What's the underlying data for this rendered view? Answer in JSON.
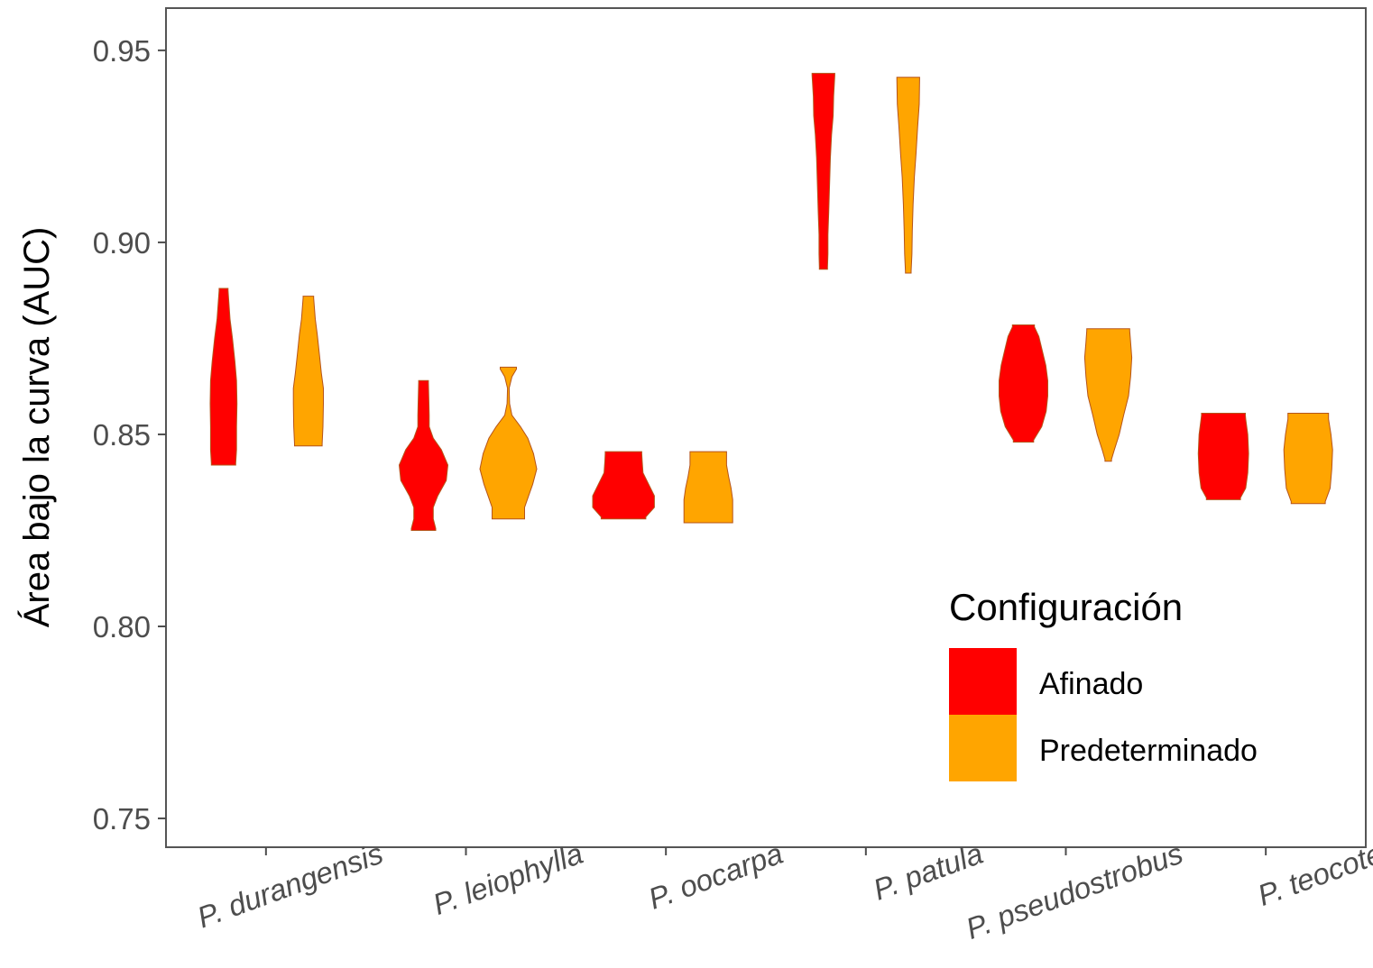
{
  "chart_data": {
    "type": "violin",
    "title": "",
    "xlabel": "",
    "ylabel": "Área bajo la curva (AUC)",
    "ylim": [
      0.7425,
      0.961
    ],
    "yticks": [
      0.75,
      0.8,
      0.85,
      0.9,
      0.95
    ],
    "ytick_labels": [
      "0.75",
      "0.80",
      "0.85",
      "0.90",
      "0.95"
    ],
    "categories": [
      "P. durangensis",
      "P. leiophylla",
      "P. oocarpa",
      "P. patula",
      "P. pseudostrobus",
      "P. teocote"
    ],
    "legend": {
      "title": "Configuración",
      "position": "right",
      "entries": [
        {
          "name": "Afinado",
          "color": "#ff0000"
        },
        {
          "name": "Predeterminado",
          "color": "#ffa500"
        }
      ]
    },
    "series": [
      {
        "name": "Afinado",
        "color": "#ff0000",
        "violins": [
          {
            "category": "P. durangensis",
            "profile": [
              [
                0.842,
                0.3
              ],
              [
                0.8425,
                0.3
              ],
              [
                0.846,
                0.32
              ],
              [
                0.852,
                0.32
              ],
              [
                0.858,
                0.33
              ],
              [
                0.864,
                0.32
              ],
              [
                0.869,
                0.28
              ],
              [
                0.875,
                0.22
              ],
              [
                0.88,
                0.16
              ],
              [
                0.8875,
                0.11
              ],
              [
                0.888,
                0.11
              ]
            ]
          },
          {
            "category": "P. leiophylla",
            "profile": [
              [
                0.825,
                0.3
              ],
              [
                0.8255,
                0.3
              ],
              [
                0.828,
                0.24
              ],
              [
                0.831,
                0.24
              ],
              [
                0.834,
                0.35
              ],
              [
                0.838,
                0.56
              ],
              [
                0.842,
                0.6
              ],
              [
                0.846,
                0.44
              ],
              [
                0.849,
                0.24
              ],
              [
                0.852,
                0.14
              ],
              [
                0.855,
                0.14
              ],
              [
                0.859,
                0.13
              ],
              [
                0.8635,
                0.12
              ],
              [
                0.864,
                0.12
              ]
            ]
          },
          {
            "category": "P. oocarpa",
            "profile": [
              [
                0.828,
                0.55
              ],
              [
                0.8285,
                0.55
              ],
              [
                0.831,
                0.76
              ],
              [
                0.834,
                0.76
              ],
              [
                0.837,
                0.62
              ],
              [
                0.84,
                0.48
              ],
              [
                0.843,
                0.46
              ],
              [
                0.845,
                0.45
              ],
              [
                0.8455,
                0.45
              ]
            ]
          },
          {
            "category": "P. patula",
            "profile": [
              [
                0.893,
                0.1
              ],
              [
                0.8935,
                0.1
              ],
              [
                0.897,
                0.11
              ],
              [
                0.902,
                0.11
              ],
              [
                0.908,
                0.13
              ],
              [
                0.915,
                0.15
              ],
              [
                0.922,
                0.17
              ],
              [
                0.928,
                0.2
              ],
              [
                0.933,
                0.24
              ],
              [
                0.938,
                0.25
              ],
              [
                0.9435,
                0.28
              ],
              [
                0.944,
                0.28
              ]
            ]
          },
          {
            "category": "P. pseudostrobus",
            "profile": [
              [
                0.848,
                0.25
              ],
              [
                0.8485,
                0.25
              ],
              [
                0.852,
                0.45
              ],
              [
                0.856,
                0.56
              ],
              [
                0.86,
                0.6
              ],
              [
                0.864,
                0.6
              ],
              [
                0.868,
                0.55
              ],
              [
                0.872,
                0.46
              ],
              [
                0.8755,
                0.38
              ],
              [
                0.878,
                0.27
              ],
              [
                0.8785,
                0.27
              ]
            ]
          },
          {
            "category": "P. teocote",
            "profile": [
              [
                0.833,
                0.42
              ],
              [
                0.8335,
                0.42
              ],
              [
                0.836,
                0.55
              ],
              [
                0.84,
                0.6
              ],
              [
                0.845,
                0.62
              ],
              [
                0.85,
                0.6
              ],
              [
                0.854,
                0.55
              ],
              [
                0.855,
                0.54
              ],
              [
                0.8555,
                0.54
              ]
            ]
          }
        ]
      },
      {
        "name": "Predeterminado",
        "color": "#ffa500",
        "violins": [
          {
            "category": "P. durangensis",
            "profile": [
              [
                0.847,
                0.34
              ],
              [
                0.8475,
                0.34
              ],
              [
                0.852,
                0.36
              ],
              [
                0.858,
                0.37
              ],
              [
                0.862,
                0.37
              ],
              [
                0.866,
                0.32
              ],
              [
                0.871,
                0.27
              ],
              [
                0.876,
                0.22
              ],
              [
                0.88,
                0.17
              ],
              [
                0.8855,
                0.13
              ],
              [
                0.886,
                0.13
              ]
            ]
          },
          {
            "category": "P. leiophylla",
            "profile": [
              [
                0.828,
                0.4
              ],
              [
                0.8285,
                0.4
              ],
              [
                0.831,
                0.4
              ],
              [
                0.834,
                0.5
              ],
              [
                0.837,
                0.6
              ],
              [
                0.841,
                0.7
              ],
              [
                0.845,
                0.62
              ],
              [
                0.849,
                0.48
              ],
              [
                0.852,
                0.3
              ],
              [
                0.855,
                0.09
              ],
              [
                0.858,
                0.03
              ],
              [
                0.862,
                0.02
              ],
              [
                0.865,
                0.09
              ],
              [
                0.867,
                0.2
              ],
              [
                0.8675,
                0.2
              ]
            ]
          },
          {
            "category": "P. oocarpa",
            "profile": [
              [
                0.827,
                0.6
              ],
              [
                0.8275,
                0.6
              ],
              [
                0.83,
                0.6
              ],
              [
                0.833,
                0.6
              ],
              [
                0.836,
                0.56
              ],
              [
                0.839,
                0.5
              ],
              [
                0.842,
                0.45
              ],
              [
                0.845,
                0.45
              ],
              [
                0.8455,
                0.45
              ]
            ]
          },
          {
            "category": "P. patula",
            "profile": [
              [
                0.892,
                0.07
              ],
              [
                0.8925,
                0.07
              ],
              [
                0.897,
                0.09
              ],
              [
                0.903,
                0.1
              ],
              [
                0.91,
                0.12
              ],
              [
                0.917,
                0.15
              ],
              [
                0.923,
                0.19
              ],
              [
                0.93,
                0.23
              ],
              [
                0.936,
                0.27
              ],
              [
                0.9425,
                0.28
              ],
              [
                0.943,
                0.28
              ]
            ]
          },
          {
            "category": "P. pseudostrobus",
            "profile": [
              [
                0.843,
                0.08
              ],
              [
                0.8435,
                0.08
              ],
              [
                0.846,
                0.15
              ],
              [
                0.85,
                0.27
              ],
              [
                0.855,
                0.38
              ],
              [
                0.86,
                0.5
              ],
              [
                0.865,
                0.55
              ],
              [
                0.87,
                0.58
              ],
              [
                0.874,
                0.55
              ],
              [
                0.877,
                0.53
              ],
              [
                0.8775,
                0.53
              ]
            ]
          },
          {
            "category": "P. teocote",
            "profile": [
              [
                0.832,
                0.42
              ],
              [
                0.8325,
                0.42
              ],
              [
                0.836,
                0.54
              ],
              [
                0.841,
                0.58
              ],
              [
                0.846,
                0.6
              ],
              [
                0.85,
                0.56
              ],
              [
                0.854,
                0.5
              ],
              [
                0.855,
                0.5
              ],
              [
                0.8555,
                0.5
              ]
            ]
          }
        ]
      }
    ]
  }
}
